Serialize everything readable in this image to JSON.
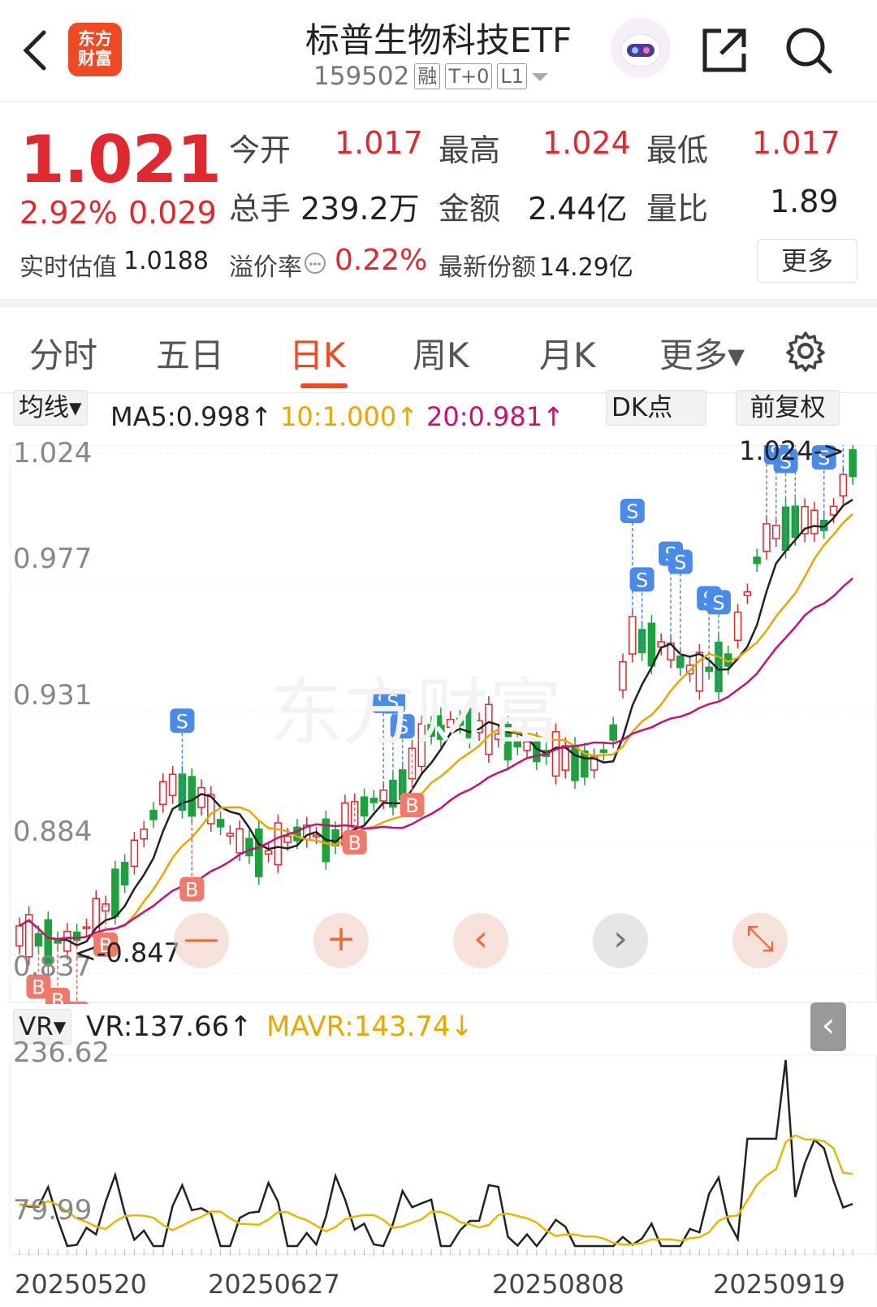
{
  "header": {
    "logo_text": "东方\n财富",
    "title": "标普生物科技ETF",
    "code": "159502",
    "tags": [
      "融",
      "T+0",
      "L1"
    ],
    "icons": [
      "back-icon",
      "robot-assistant-icon",
      "share-icon",
      "search-icon"
    ]
  },
  "quote": {
    "price": "1.021",
    "change_pct": "2.92%",
    "change": "0.029",
    "open_label": "今开",
    "open": "1.017",
    "high_label": "最高",
    "high": "1.024",
    "low_label": "最低",
    "low": "1.017",
    "volume_label": "总手",
    "volume": "239.2万",
    "amount_label": "金额",
    "amount": "2.44亿",
    "ratio_label": "量比",
    "ratio": "1.89",
    "iopv_label": "实时估值",
    "iopv": "1.0188",
    "premium_label": "溢价率",
    "premium": "0.22%",
    "shares_label": "最新份额",
    "shares": "14.29亿",
    "more_label": "更多"
  },
  "tabs": {
    "items": [
      "分时",
      "五日",
      "日K",
      "周K",
      "月K",
      "更多▾"
    ],
    "active": "日K"
  },
  "indicators": {
    "ma_dropdown": "均线▾",
    "ma5": "MA5:0.998↑",
    "ma10": "10:1.000↑",
    "ma20": "20:0.981↑",
    "dk_label": "DK点",
    "adjust_label": "前复权",
    "colors": {
      "ma5": "#222222",
      "ma10": "#e8a800",
      "ma20": "#c8107a",
      "up": "#e0282e",
      "down": "#1aa33a"
    }
  },
  "price_axis": {
    "labels": [
      "1.024",
      "0.977",
      "0.931",
      "0.884",
      "0.837"
    ],
    "max_marker": "1.024->",
    "min_marker": "<-0.847"
  },
  "signals": {
    "buy": "B",
    "sell": "S"
  },
  "controls": [
    "zoom-out",
    "zoom-in",
    "scroll-left",
    "scroll-right",
    "fullscreen"
  ],
  "control_glyphs": {
    "zoom_out": "—",
    "zoom_in": "+",
    "left": "‹",
    "right": "›",
    "expand": "⤡"
  },
  "vr": {
    "dropdown": "VR▾",
    "vr_value": "VR:137.66↑",
    "mavr_value": "MAVR:143.74↓",
    "axis_top": "236.62",
    "axis_bottom": "79.99",
    "collapse": "‹"
  },
  "dates": [
    "20250520",
    "20250627",
    "20250808",
    "20250919"
  ],
  "chart_data": {
    "type": "candlestick",
    "ylim": [
      0.837,
      1.024
    ],
    "candles_count": 88,
    "ma_series": [
      {
        "name": "MA5",
        "last": 0.998
      },
      {
        "name": "MA10",
        "last": 1.0
      },
      {
        "name": "MA20",
        "last": 0.981
      }
    ],
    "vr_ylim": [
      79.99,
      236.62
    ],
    "vr_series": [
      {
        "name": "VR",
        "last": 137.66
      },
      {
        "name": "MAVR",
        "last": 143.74
      }
    ],
    "x_tick_labels": [
      "20250520",
      "20250627",
      "20250808",
      "20250919"
    ]
  }
}
